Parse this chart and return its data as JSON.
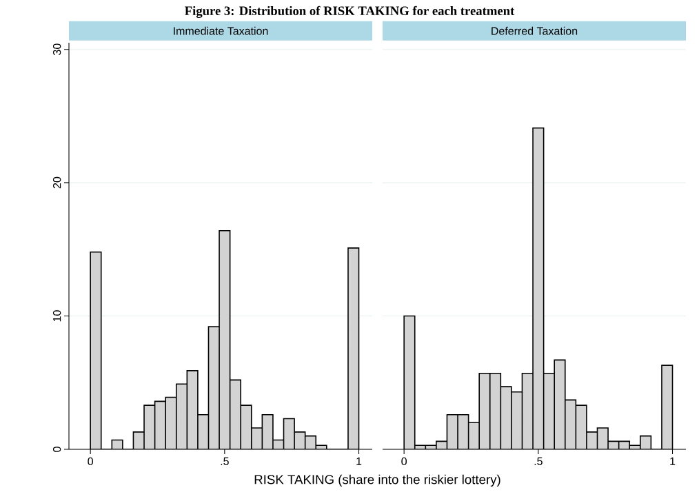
{
  "chart_data": [
    {
      "type": "histogram",
      "title": "Immediate Taxation",
      "xlabel": "RISK TAKING (share into the riskier lottery)",
      "annotations": [
        "Figure 3: Distribution of RISK TAKING for each treatment"
      ],
      "bins": [
        0,
        0.04,
        0.08,
        0.12,
        0.16,
        0.2,
        0.24,
        0.28,
        0.32,
        0.36,
        0.4,
        0.44,
        0.48,
        0.52,
        0.56,
        0.6,
        0.64,
        0.68,
        0.72,
        0.76,
        0.8,
        0.84,
        0.88,
        0.92,
        0.96,
        1
      ],
      "values": [
        14.8,
        0,
        0.7,
        0,
        1.3,
        3.3,
        3.6,
        3.9,
        4.9,
        5.9,
        2.6,
        9.2,
        16.4,
        5.2,
        3.3,
        1.6,
        2.6,
        0.7,
        2.3,
        1.3,
        1.0,
        0.3,
        0,
        0,
        15.1
      ],
      "color": "#d3d3d3",
      "xlim": [
        -0.08,
        1.05
      ],
      "ylim": [
        0,
        30.5
      ],
      "xticks": [
        0,
        {
          "value": 0.5,
          "label": ".5"
        },
        1
      ],
      "yticks": [
        0,
        10,
        20,
        30
      ],
      "grid": "y"
    },
    {
      "type": "histogram",
      "title": "Deferred Taxation",
      "bins": [
        0,
        0.04,
        0.08,
        0.12,
        0.16,
        0.2,
        0.24,
        0.28,
        0.32,
        0.36,
        0.4,
        0.44,
        0.48,
        0.52,
        0.56,
        0.6,
        0.64,
        0.68,
        0.72,
        0.76,
        0.8,
        0.84,
        0.88,
        0.92,
        0.96,
        1
      ],
      "values": [
        10.0,
        0.3,
        0.3,
        0.6,
        2.6,
        2.6,
        2.0,
        5.7,
        5.7,
        4.7,
        4.3,
        5.7,
        24.1,
        5.7,
        6.7,
        3.7,
        3.3,
        1.3,
        1.6,
        0.6,
        0.6,
        0.3,
        1.0,
        0,
        6.3
      ],
      "color": "#d3d3d3",
      "xlim": [
        -0.08,
        1.05
      ],
      "ylim": [
        0,
        30
      ],
      "xticks": [
        0,
        {
          "value": 0.5,
          "label": ".5"
        },
        1
      ],
      "yticks": [
        0,
        10,
        20,
        30
      ],
      "grid": "y",
      "tick_labels": "x"
    }
  ]
}
